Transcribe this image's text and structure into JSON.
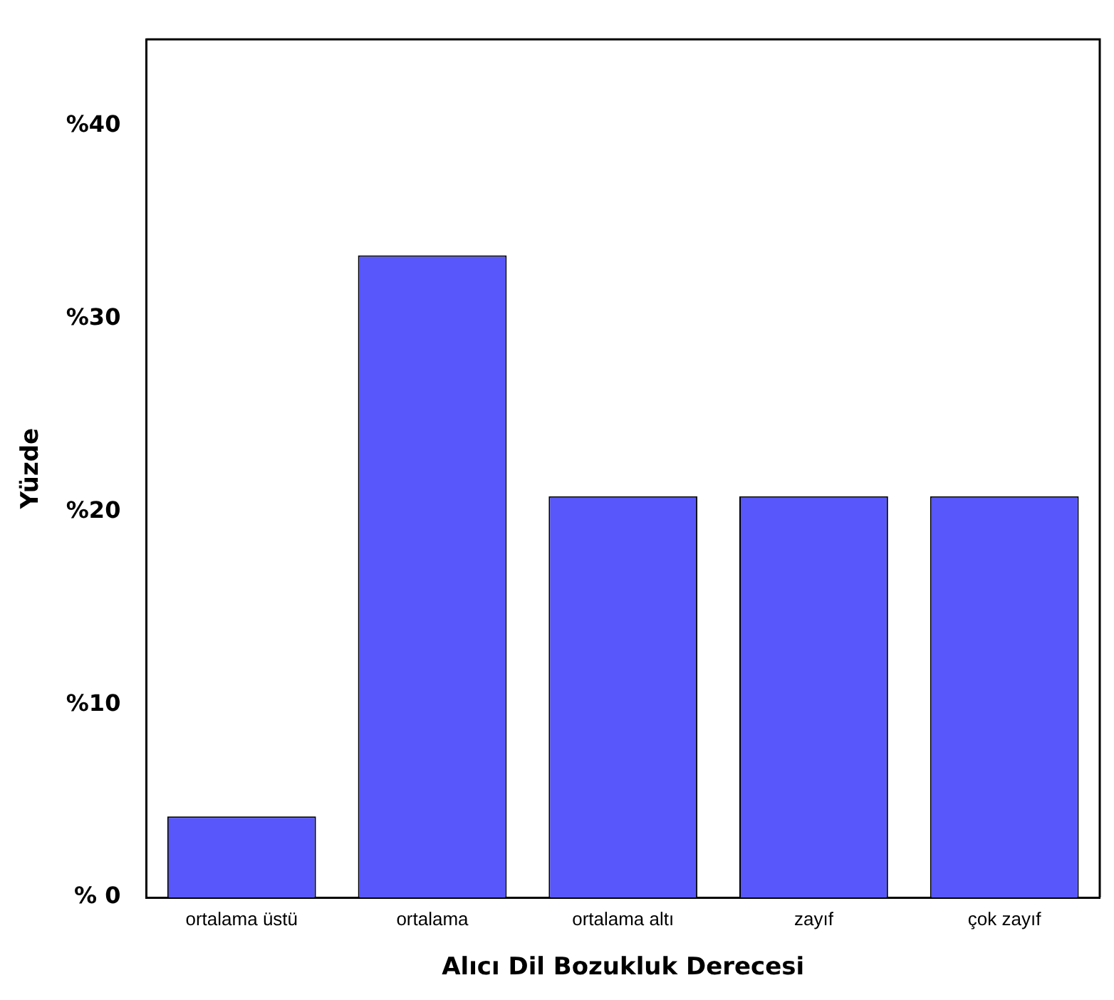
{
  "chart_data": {
    "type": "bar",
    "xlabel": "Alıcı Dil Bozukluk Derecesi",
    "ylabel": "Yüzde",
    "categories": [
      "ortalama üstü",
      "ortalama",
      "ortalama altı",
      "zayıf",
      "çok zayıf"
    ],
    "values": [
      4.2,
      33.3,
      20.8,
      20.8,
      20.8
    ],
    "color": "#5757fb",
    "ylim": [
      0,
      44.5
    ],
    "yticks": [
      {
        "value": 0,
        "label": "% 0"
      },
      {
        "value": 10,
        "label": "%10"
      },
      {
        "value": 20,
        "label": "%20"
      },
      {
        "value": 30,
        "label": "%30"
      },
      {
        "value": 40,
        "label": "%40"
      }
    ],
    "grid": false,
    "legend": false
  }
}
